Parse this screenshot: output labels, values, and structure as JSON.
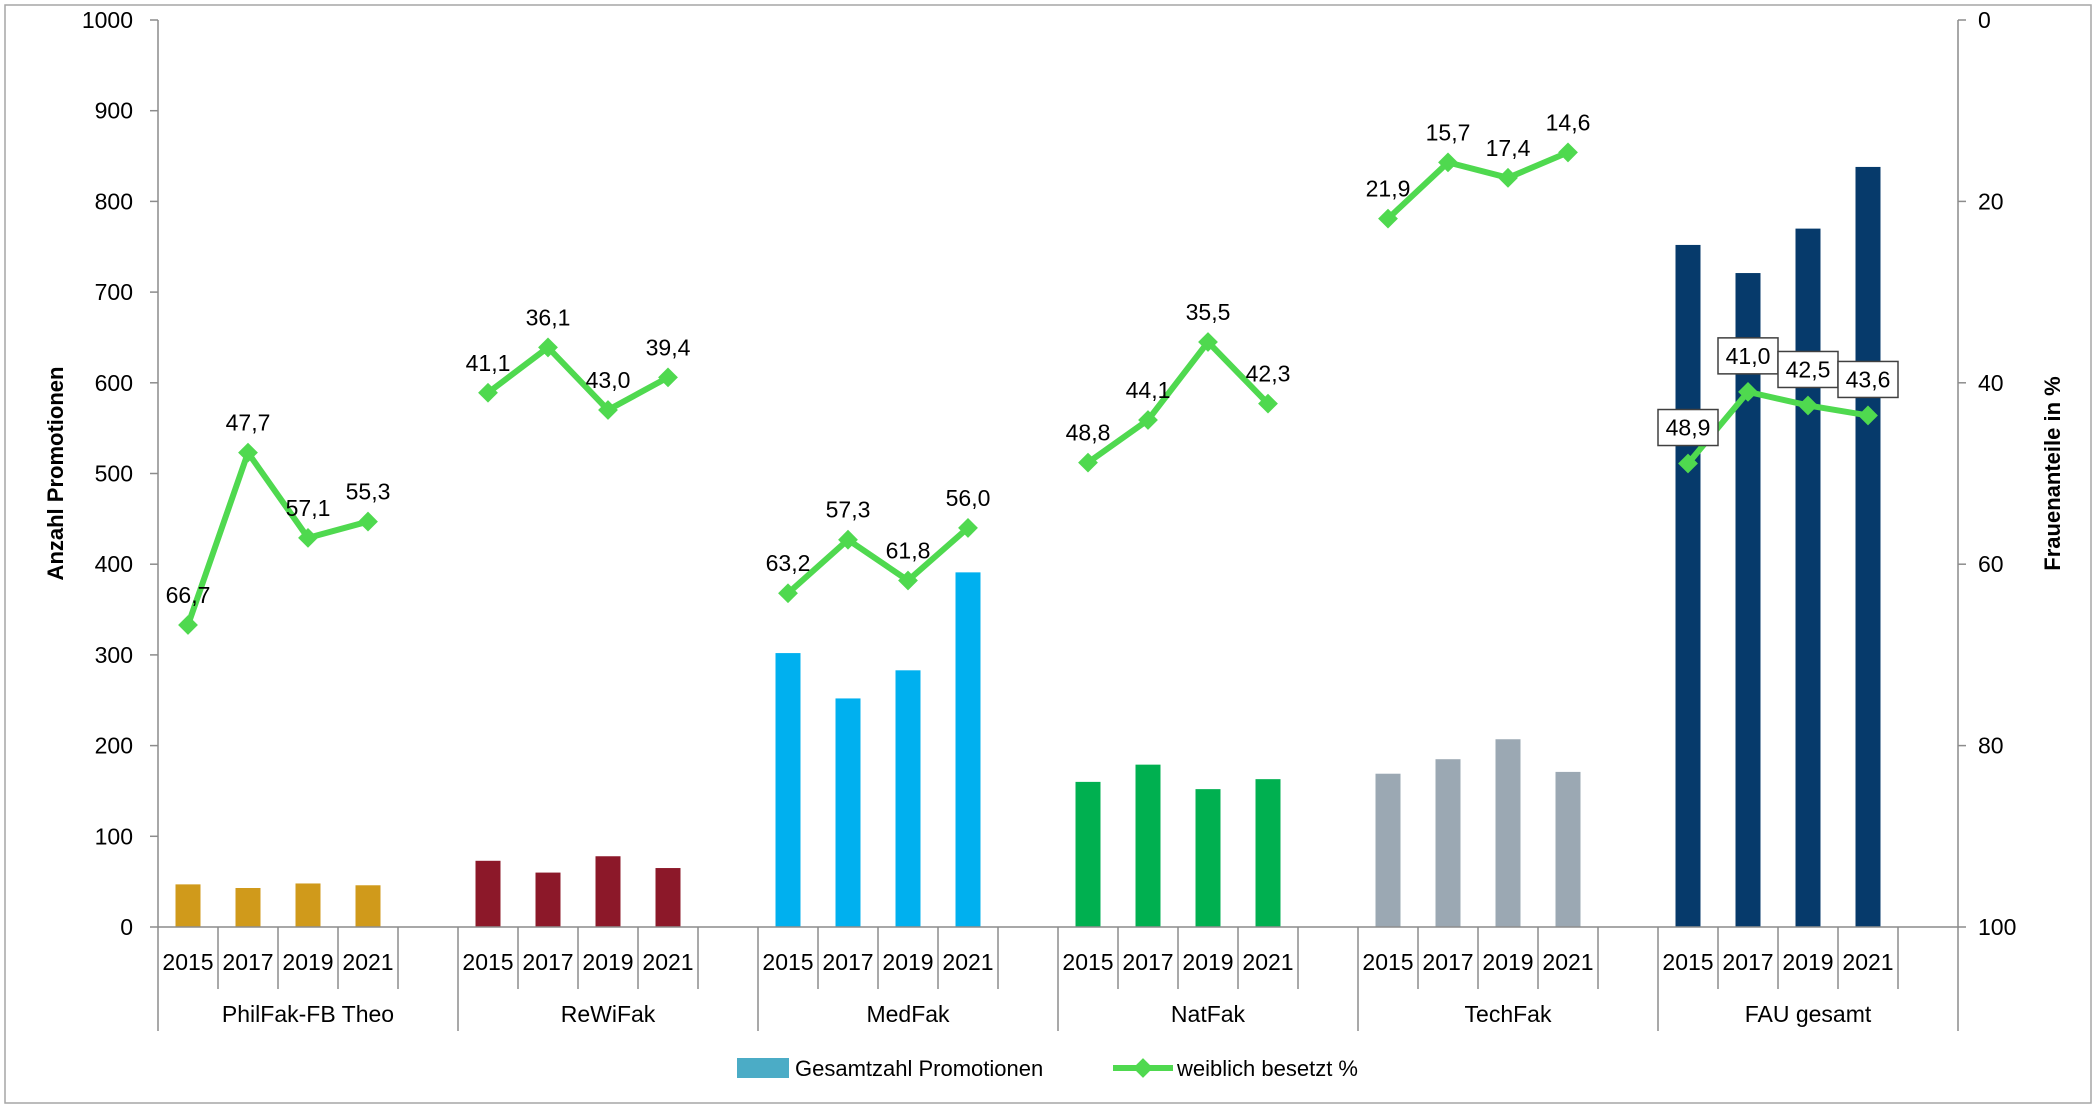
{
  "chart_data": {
    "type": "bar",
    "groups": [
      {
        "name": "PhilFak-FB Theo",
        "years": [
          "2015",
          "2017",
          "2019",
          "2021"
        ],
        "values": [
          47,
          43,
          48,
          46
        ],
        "percent": [
          66.7,
          47.7,
          57.1,
          55.3
        ],
        "percent_labels": [
          "66,7",
          "47,7",
          "57,1",
          "55,3"
        ],
        "color": "#d09a1b"
      },
      {
        "name": "ReWiFak",
        "years": [
          "2015",
          "2017",
          "2019",
          "2021"
        ],
        "values": [
          73,
          60,
          78,
          65
        ],
        "percent": [
          41.1,
          36.1,
          43.0,
          39.4
        ],
        "percent_labels": [
          "41,1",
          "36,1",
          "43,0",
          "39,4"
        ],
        "color": "#8c1829"
      },
      {
        "name": "MedFak",
        "years": [
          "2015",
          "2017",
          "2019",
          "2021"
        ],
        "values": [
          302,
          252,
          283,
          391
        ],
        "percent": [
          63.2,
          57.3,
          61.8,
          56.0
        ],
        "percent_labels": [
          "63,2",
          "57,3",
          "61,8",
          "56,0"
        ],
        "color": "#00b0ef"
      },
      {
        "name": "NatFak",
        "years": [
          "2015",
          "2017",
          "2019",
          "2021"
        ],
        "values": [
          160,
          179,
          152,
          163
        ],
        "percent": [
          48.8,
          44.1,
          35.5,
          42.3
        ],
        "percent_labels": [
          "48,8",
          "44,1",
          "35,5",
          "42,3"
        ],
        "color": "#00b050"
      },
      {
        "name": "TechFak",
        "years": [
          "2015",
          "2017",
          "2019",
          "2021"
        ],
        "values": [
          169,
          185,
          207,
          171
        ],
        "percent": [
          21.9,
          15.7,
          17.4,
          14.6
        ],
        "percent_labels": [
          "21,9",
          "15,7",
          "17,4",
          "14,6"
        ],
        "color": "#9ba8b3"
      },
      {
        "name": "FAU gesamt",
        "years": [
          "2015",
          "2017",
          "2019",
          "2021"
        ],
        "values": [
          752,
          721,
          770,
          838
        ],
        "percent": [
          48.9,
          41.0,
          42.5,
          43.6
        ],
        "percent_labels": [
          "48,9",
          "41,0",
          "42,5",
          "43,6"
        ],
        "color": "#063a6b",
        "boxed_labels": true
      }
    ],
    "ylabel": "Anzahl Promotionen",
    "ylim": [
      0,
      1000
    ],
    "yticks": [
      "0",
      "100",
      "200",
      "300",
      "400",
      "500",
      "600",
      "700",
      "800",
      "900",
      "1000"
    ],
    "y2label": "Frauenanteile in %",
    "y2lim": [
      0,
      100
    ],
    "y2_reversed": true,
    "y2ticks": [
      "0",
      "20",
      "40",
      "60",
      "80",
      "100"
    ],
    "line_color": "#4fd94f",
    "legend": [
      {
        "label": "Gesamtzahl Promotionen",
        "kind": "bar",
        "color": "#4bacc6"
      },
      {
        "label": "weiblich besetzt %",
        "kind": "line",
        "color": "#4fd94f"
      }
    ],
    "legend_position": "bottom",
    "grid": false
  }
}
